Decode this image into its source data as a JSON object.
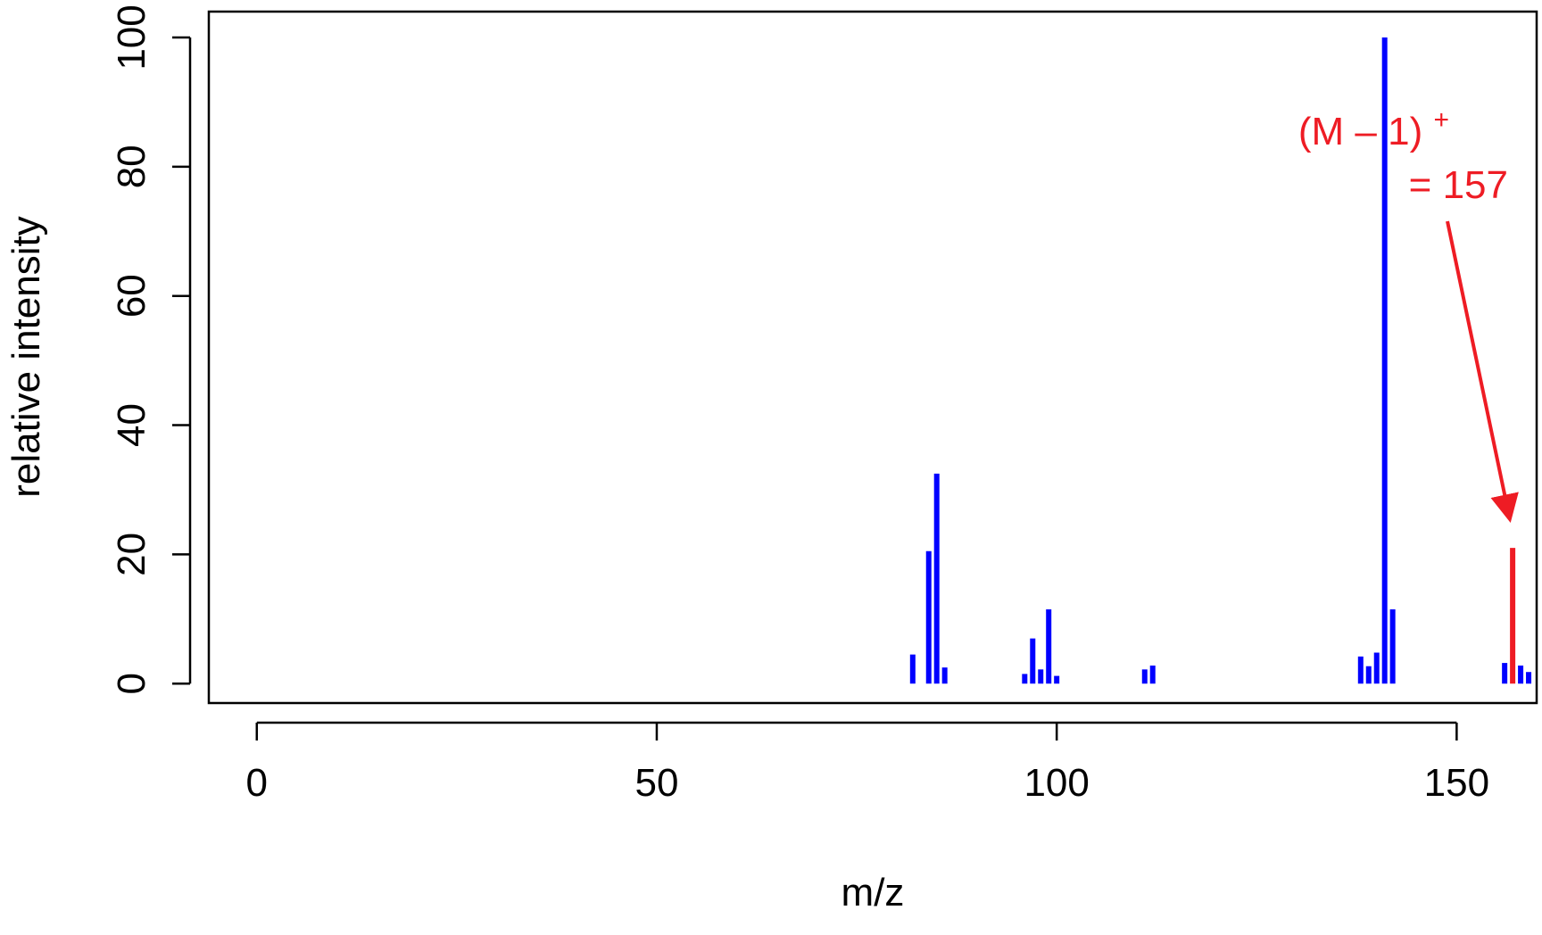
{
  "chart_data": {
    "type": "bar",
    "title": "",
    "xlabel": "m/z",
    "ylabel": "relative intensity",
    "xlim": [
      -6,
      160
    ],
    "ylim": [
      -3,
      104
    ],
    "x_ticks": [
      0,
      50,
      100,
      150
    ],
    "y_ticks": [
      0,
      20,
      40,
      60,
      80,
      100
    ],
    "grid": false,
    "series": [
      {
        "color": "#0000ff",
        "points": [
          {
            "x": 82,
            "y": 4.5
          },
          {
            "x": 84,
            "y": 20.5
          },
          {
            "x": 85,
            "y": 32.5
          },
          {
            "x": 86,
            "y": 2.5
          },
          {
            "x": 96,
            "y": 1.5
          },
          {
            "x": 97,
            "y": 7
          },
          {
            "x": 98,
            "y": 2.2
          },
          {
            "x": 99,
            "y": 11.5
          },
          {
            "x": 100,
            "y": 1.2
          },
          {
            "x": 111,
            "y": 2.2
          },
          {
            "x": 112,
            "y": 2.8
          },
          {
            "x": 138,
            "y": 4.2
          },
          {
            "x": 139,
            "y": 2.7
          },
          {
            "x": 140,
            "y": 4.8
          },
          {
            "x": 141,
            "y": 100
          },
          {
            "x": 142,
            "y": 11.5
          },
          {
            "x": 156,
            "y": 3.2
          },
          {
            "x": 158,
            "y": 2.8
          },
          {
            "x": 159,
            "y": 1.8
          }
        ]
      },
      {
        "color": "#ee1c24",
        "points": [
          {
            "x": 157,
            "y": 21
          }
        ]
      }
    ],
    "annotation": {
      "line1": "(M – 1)",
      "superscript": "+",
      "line2": "= 157",
      "color": "#ee1c24",
      "target_x": 157
    }
  }
}
